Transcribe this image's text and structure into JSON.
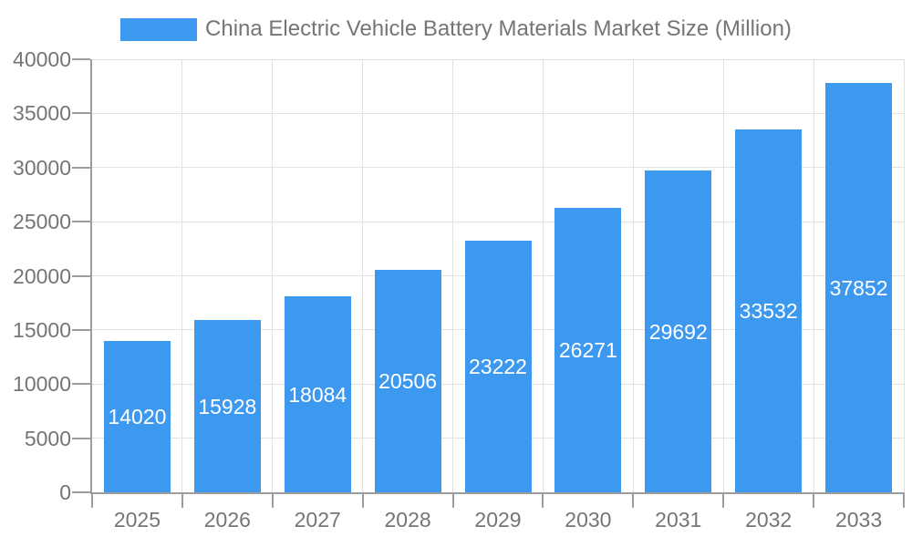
{
  "chart_data": {
    "type": "bar",
    "title": "China Electric Vehicle Battery Materials Market Size (Million)",
    "legend_entries": [
      "China Electric Vehicle Battery Materials Market Size (Million)"
    ],
    "legend_position": "top-center",
    "categories": [
      "2025",
      "2026",
      "2027",
      "2028",
      "2029",
      "2030",
      "2031",
      "2032",
      "2033"
    ],
    "values": [
      14020,
      15928,
      18084,
      20506,
      23222,
      26271,
      29692,
      33532,
      37852
    ],
    "bar_value_labels_shown": true,
    "xlabel": "",
    "ylabel": "",
    "ylim": [
      0,
      40000
    ],
    "ytick_step": 5000,
    "yticks": [
      0,
      5000,
      10000,
      15000,
      20000,
      25000,
      30000,
      35000,
      40000
    ],
    "grid": "horizontal and vertical gridlines on"
  },
  "colors": {
    "bar": "#3D99F0",
    "bar_label": "#FFFFFF",
    "grid": "#E2E2E2",
    "axis": "#9C9C9C",
    "tick_text": "#757575",
    "title_text": "#757575",
    "background": "#FFFFFF"
  }
}
